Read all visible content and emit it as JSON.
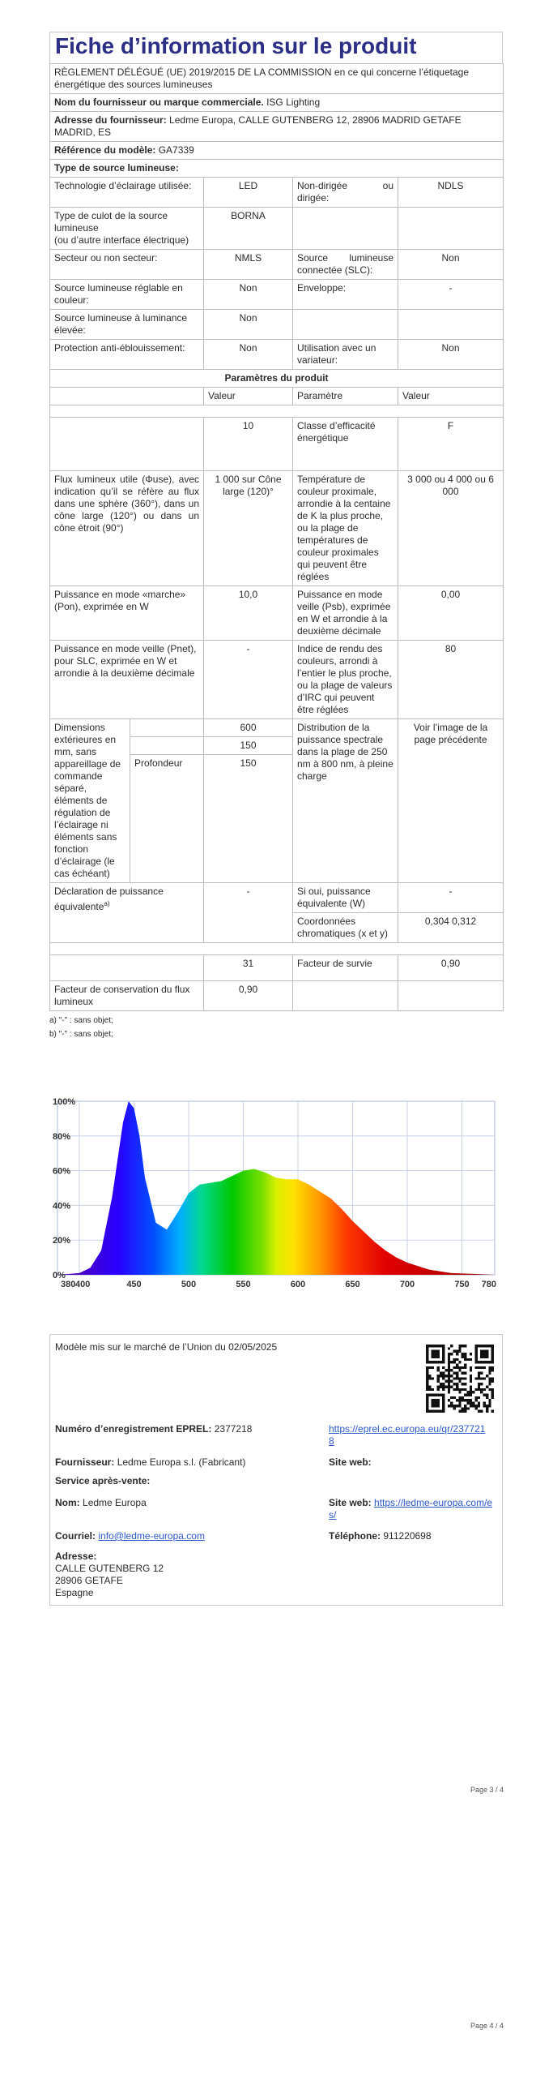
{
  "title": "Fiche d’information sur le produit",
  "regulation": "RÈGLEMENT DÉLÉGUÉ (UE) 2019/2015 DE LA COMMISSION en ce qui concerne l’étiquetage énergétique des sources lumineuses",
  "supplier_name": {
    "label": "Nom du fournisseur ou marque commerciale.",
    "value": "ISG Lighting"
  },
  "supplier_address": {
    "label": "Adresse du fournisseur:",
    "value": "Ledme Europa, CALLE GUTENBERG 12, 28906 MADRID GETAFE MADRID, ES"
  },
  "model_ref": {
    "label": "Référence du modèle:",
    "value": "GA7339"
  },
  "source_type_header": "Type de source lumineuse:",
  "source_rows": [
    {
      "l1": "Technologie d’éclairage utilisée:",
      "v1": "LED",
      "l2": "Non-dirigée ou dirigée:",
      "v2": "NDLS"
    },
    {
      "l1": "Type de culot de la source lumineuse\n(ou d’autre interface électrique)",
      "v1": "BORNA",
      "l2": "",
      "v2": ""
    },
    {
      "l1": "Secteur ou non secteur:",
      "v1": "NMLS",
      "l2": "Source lumineuse connectée (SLC):",
      "v2": "Non"
    },
    {
      "l1": "Source lumineuse réglable en couleur:",
      "v1": "Non",
      "l2": "Enveloppe:",
      "v2": "-"
    },
    {
      "l1": "Source lumineuse à luminance élevée:",
      "v1": "Non",
      "l2": "",
      "v2": ""
    },
    {
      "l1": "Protection anti-éblouissement:",
      "v1": "Non",
      "l2": "Utilisation avec un variateur:",
      "v2": "Non"
    }
  ],
  "params_header": "Paramètres du produit",
  "col_headers": {
    "value1": "Valeur",
    "param": "Paramètre",
    "value2": "Valeur"
  },
  "params": {
    "energy_value": "10",
    "energy_label": "Classe d’efficacité énergétique",
    "energy_class": "F",
    "flux_label": "Flux lumineux utile (Φuse), avec indication qu’il se réfère au flux dans une sphère (360°), dans un cône large (120°) ou dans un cône étroit (90°)",
    "flux_value": "1 000 sur Cône large (120)°",
    "cct_label": "Température de couleur proximale, arrondie à la centaine de K la plus proche, ou la plage de températures de couleur proximales qui peuvent être réglées",
    "cct_value": "3 000 ou 4 000 ou 6 000",
    "on_label": "Puissance en mode «marche» (Pon), exprimée en W",
    "on_value": "10,0",
    "sb_label": "Puissance en mode veille (Psb), exprimée en W et arrondie à la deuxième décimale",
    "sb_value": "0,00",
    "net_label": "Puissance en mode veille (Pnet), pour SLC, exprimée en W et arrondie à la deuxième décimale",
    "net_value": "-",
    "cri_label": "Indice de rendu des couleurs, arrondi à l’entier le plus proche, ou la plage de valeurs d’IRC qui peuvent être réglées",
    "cri_value": "80",
    "dim_label": "Dimensions extérieures en mm, sans appareillage de commande séparé, éléments de régulation de l’éclairage ni éléments sans fonction d’éclairage (le cas échéant)",
    "dim_values": [
      "600",
      "150",
      "150"
    ],
    "depth_label": "Profondeur",
    "spd_label": "Distribution de la puissance spectrale dans la plage de 250 nm à 800 nm, à pleine charge",
    "spd_value": "Voir l’image de la page précédente",
    "equiv_label": "Déclaration de puissance équivalente",
    "equiv_sup": "a)",
    "equiv_value": "-",
    "equiv_w_label": "Si oui, puissance équivalente (W)",
    "equiv_w_value": "-",
    "chroma_label": "Coordonnées chromatiques (x et y)",
    "chroma_value": "0,304 0,312",
    "surv_value": "31",
    "surv_label": "Facteur de survie",
    "surv_value2": "0,90",
    "maint_label": "Facteur de conservation du flux lumineux",
    "maint_value": "0,90"
  },
  "notes": [
    "a) \"-\" : sans objet;",
    "b) \"-\" : sans objet;"
  ],
  "chart_data": {
    "type": "area",
    "title": "",
    "xlabel": "",
    "ylabel": "",
    "x_ticks": [
      380,
      400,
      450,
      500,
      550,
      600,
      650,
      700,
      750,
      780
    ],
    "y_ticks": [
      "0%",
      "20%",
      "40%",
      "60%",
      "80%",
      "100%"
    ],
    "xlim": [
      380,
      780
    ],
    "ylim": [
      0,
      100
    ],
    "grid": true,
    "x": [
      380,
      400,
      410,
      420,
      430,
      440,
      445,
      450,
      455,
      460,
      470,
      480,
      490,
      500,
      510,
      520,
      530,
      540,
      550,
      560,
      570,
      580,
      590,
      600,
      610,
      620,
      630,
      640,
      650,
      660,
      670,
      680,
      690,
      700,
      720,
      740,
      760,
      780
    ],
    "values": [
      0,
      1,
      4,
      14,
      45,
      88,
      100,
      96,
      80,
      56,
      30,
      26,
      36,
      47,
      52,
      53,
      54,
      57,
      60,
      61,
      59,
      56,
      55,
      55,
      52,
      48,
      44,
      38,
      31,
      25,
      19,
      14,
      10,
      7,
      3,
      1,
      0.5,
      0
    ]
  },
  "info": {
    "market_date": "Modèle mis sur le marché de l’Union du 02/05/2025",
    "eprel_label": "Numéro d’enregistrement EPREL:",
    "eprel_value": "2377218",
    "eprel_link": "https://eprel.ec.europa.eu/qr/2377218",
    "supplier_label": "Fournisseur:",
    "supplier_value": "Ledme Europa s.l. (Fabricant)",
    "site_label": "Site web:",
    "service_label": "Service après-vente:",
    "name_label": "Nom:",
    "name_value": "Ledme Europa",
    "site2_label": "Site web:",
    "site2_value": "https://ledme-europa.com/es/",
    "email_label": "Courriel:",
    "email_value": "info@ledme-europa.com",
    "phone_label": "Téléphone:",
    "phone_value": "911220698",
    "address_label": "Adresse:",
    "address_lines": [
      "CALLE GUTENBERG 12",
      "28906 GETAFE",
      "Espagne"
    ]
  },
  "pages": [
    "Page 3 / 4",
    "Page 4 / 4"
  ]
}
